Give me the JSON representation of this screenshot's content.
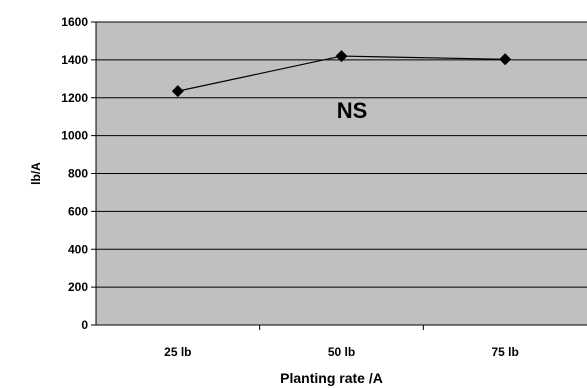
{
  "chart_data": {
    "type": "line",
    "categories": [
      "25 lb",
      "50 lb",
      "75 lb"
    ],
    "series": [
      {
        "values": [
          1235,
          1420,
          1403
        ]
      }
    ],
    "xlabel": "Planting rate /A",
    "ylabel": "lb/A",
    "ylim": [
      0,
      1600
    ],
    "yticks": [
      0,
      200,
      400,
      600,
      800,
      1000,
      1200,
      1400,
      1600
    ],
    "grid": true,
    "annotation": "NS",
    "colors": {
      "plot_background": "#c0c0c0",
      "gridline": "#000000",
      "series": "#000000"
    }
  }
}
